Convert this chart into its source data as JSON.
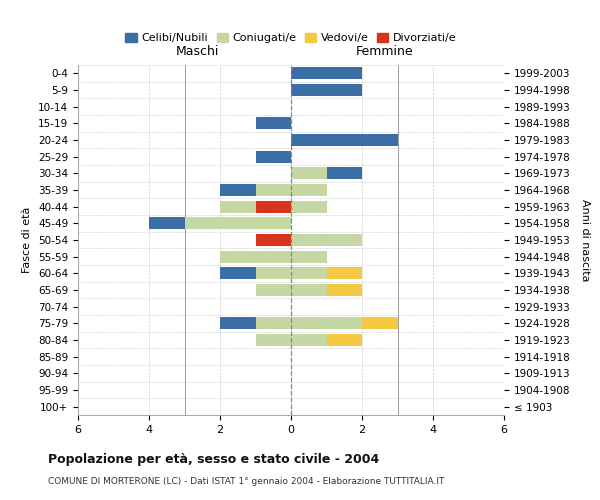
{
  "age_groups": [
    "100+",
    "95-99",
    "90-94",
    "85-89",
    "80-84",
    "75-79",
    "70-74",
    "65-69",
    "60-64",
    "55-59",
    "50-54",
    "45-49",
    "40-44",
    "35-39",
    "30-34",
    "25-29",
    "20-24",
    "15-19",
    "10-14",
    "5-9",
    "0-4"
  ],
  "birth_years": [
    "≤ 1903",
    "1904-1908",
    "1909-1913",
    "1914-1918",
    "1919-1923",
    "1924-1928",
    "1929-1933",
    "1934-1938",
    "1939-1943",
    "1944-1948",
    "1949-1953",
    "1954-1958",
    "1959-1963",
    "1964-1968",
    "1969-1973",
    "1974-1978",
    "1979-1983",
    "1984-1988",
    "1989-1993",
    "1994-1998",
    "1999-2003"
  ],
  "maschi": {
    "celibi": [
      0,
      0,
      0,
      0,
      0,
      1,
      0,
      0,
      1,
      0,
      0,
      1,
      0,
      1,
      0,
      1,
      0,
      1,
      0,
      0,
      0
    ],
    "coniugati": [
      0,
      0,
      0,
      0,
      1,
      1,
      0,
      1,
      1,
      2,
      0,
      3,
      1,
      1,
      0,
      0,
      0,
      0,
      0,
      0,
      0
    ],
    "vedovi": [
      0,
      0,
      0,
      0,
      0,
      0,
      0,
      0,
      0,
      0,
      0,
      0,
      0,
      0,
      0,
      0,
      0,
      0,
      0,
      0,
      0
    ],
    "divorziati": [
      0,
      0,
      0,
      0,
      0,
      0,
      0,
      0,
      0,
      0,
      1,
      0,
      1,
      0,
      0,
      0,
      0,
      0,
      0,
      0,
      0
    ]
  },
  "femmine": {
    "nubili": [
      0,
      0,
      0,
      0,
      0,
      0,
      0,
      0,
      0,
      0,
      0,
      0,
      0,
      0,
      1,
      0,
      3,
      0,
      0,
      2,
      2
    ],
    "coniugate": [
      0,
      0,
      0,
      0,
      1,
      2,
      0,
      1,
      1,
      1,
      2,
      0,
      1,
      1,
      1,
      0,
      0,
      0,
      0,
      0,
      0
    ],
    "vedove": [
      0,
      0,
      0,
      0,
      1,
      1,
      0,
      1,
      1,
      0,
      0,
      0,
      0,
      0,
      0,
      0,
      0,
      0,
      0,
      0,
      0
    ],
    "divorziate": [
      0,
      0,
      0,
      0,
      0,
      0,
      0,
      0,
      0,
      0,
      0,
      0,
      0,
      0,
      0,
      0,
      0,
      0,
      0,
      0,
      0
    ]
  },
  "colors": {
    "celibi_nubili": "#3a6ea5",
    "coniugati": "#c5d8a4",
    "vedovi": "#f5c842",
    "divorziati": "#d9331c"
  },
  "xlim": [
    -6,
    6
  ],
  "xticks": [
    -6,
    -4,
    -2,
    0,
    2,
    4,
    6
  ],
  "xticklabels": [
    "6",
    "4",
    "2",
    "0",
    "2",
    "4",
    "6"
  ],
  "title": "Popolazione per età, sesso e stato civile - 2004",
  "subtitle": "COMUNE DI MORTERONE (LC) - Dati ISTAT 1° gennaio 2004 - Elaborazione TUTTITALIA.IT",
  "ylabel_left": "Fasce di età",
  "ylabel_right": "Anni di nascita",
  "label_maschi": "Maschi",
  "label_femmine": "Femmine",
  "legend_labels": [
    "Celibi/Nubili",
    "Coniugati/e",
    "Vedovi/e",
    "Divorziati/e"
  ],
  "bg_color": "#ffffff",
  "grid_color": "#cccccc",
  "spine_color": "#aaaaaa"
}
